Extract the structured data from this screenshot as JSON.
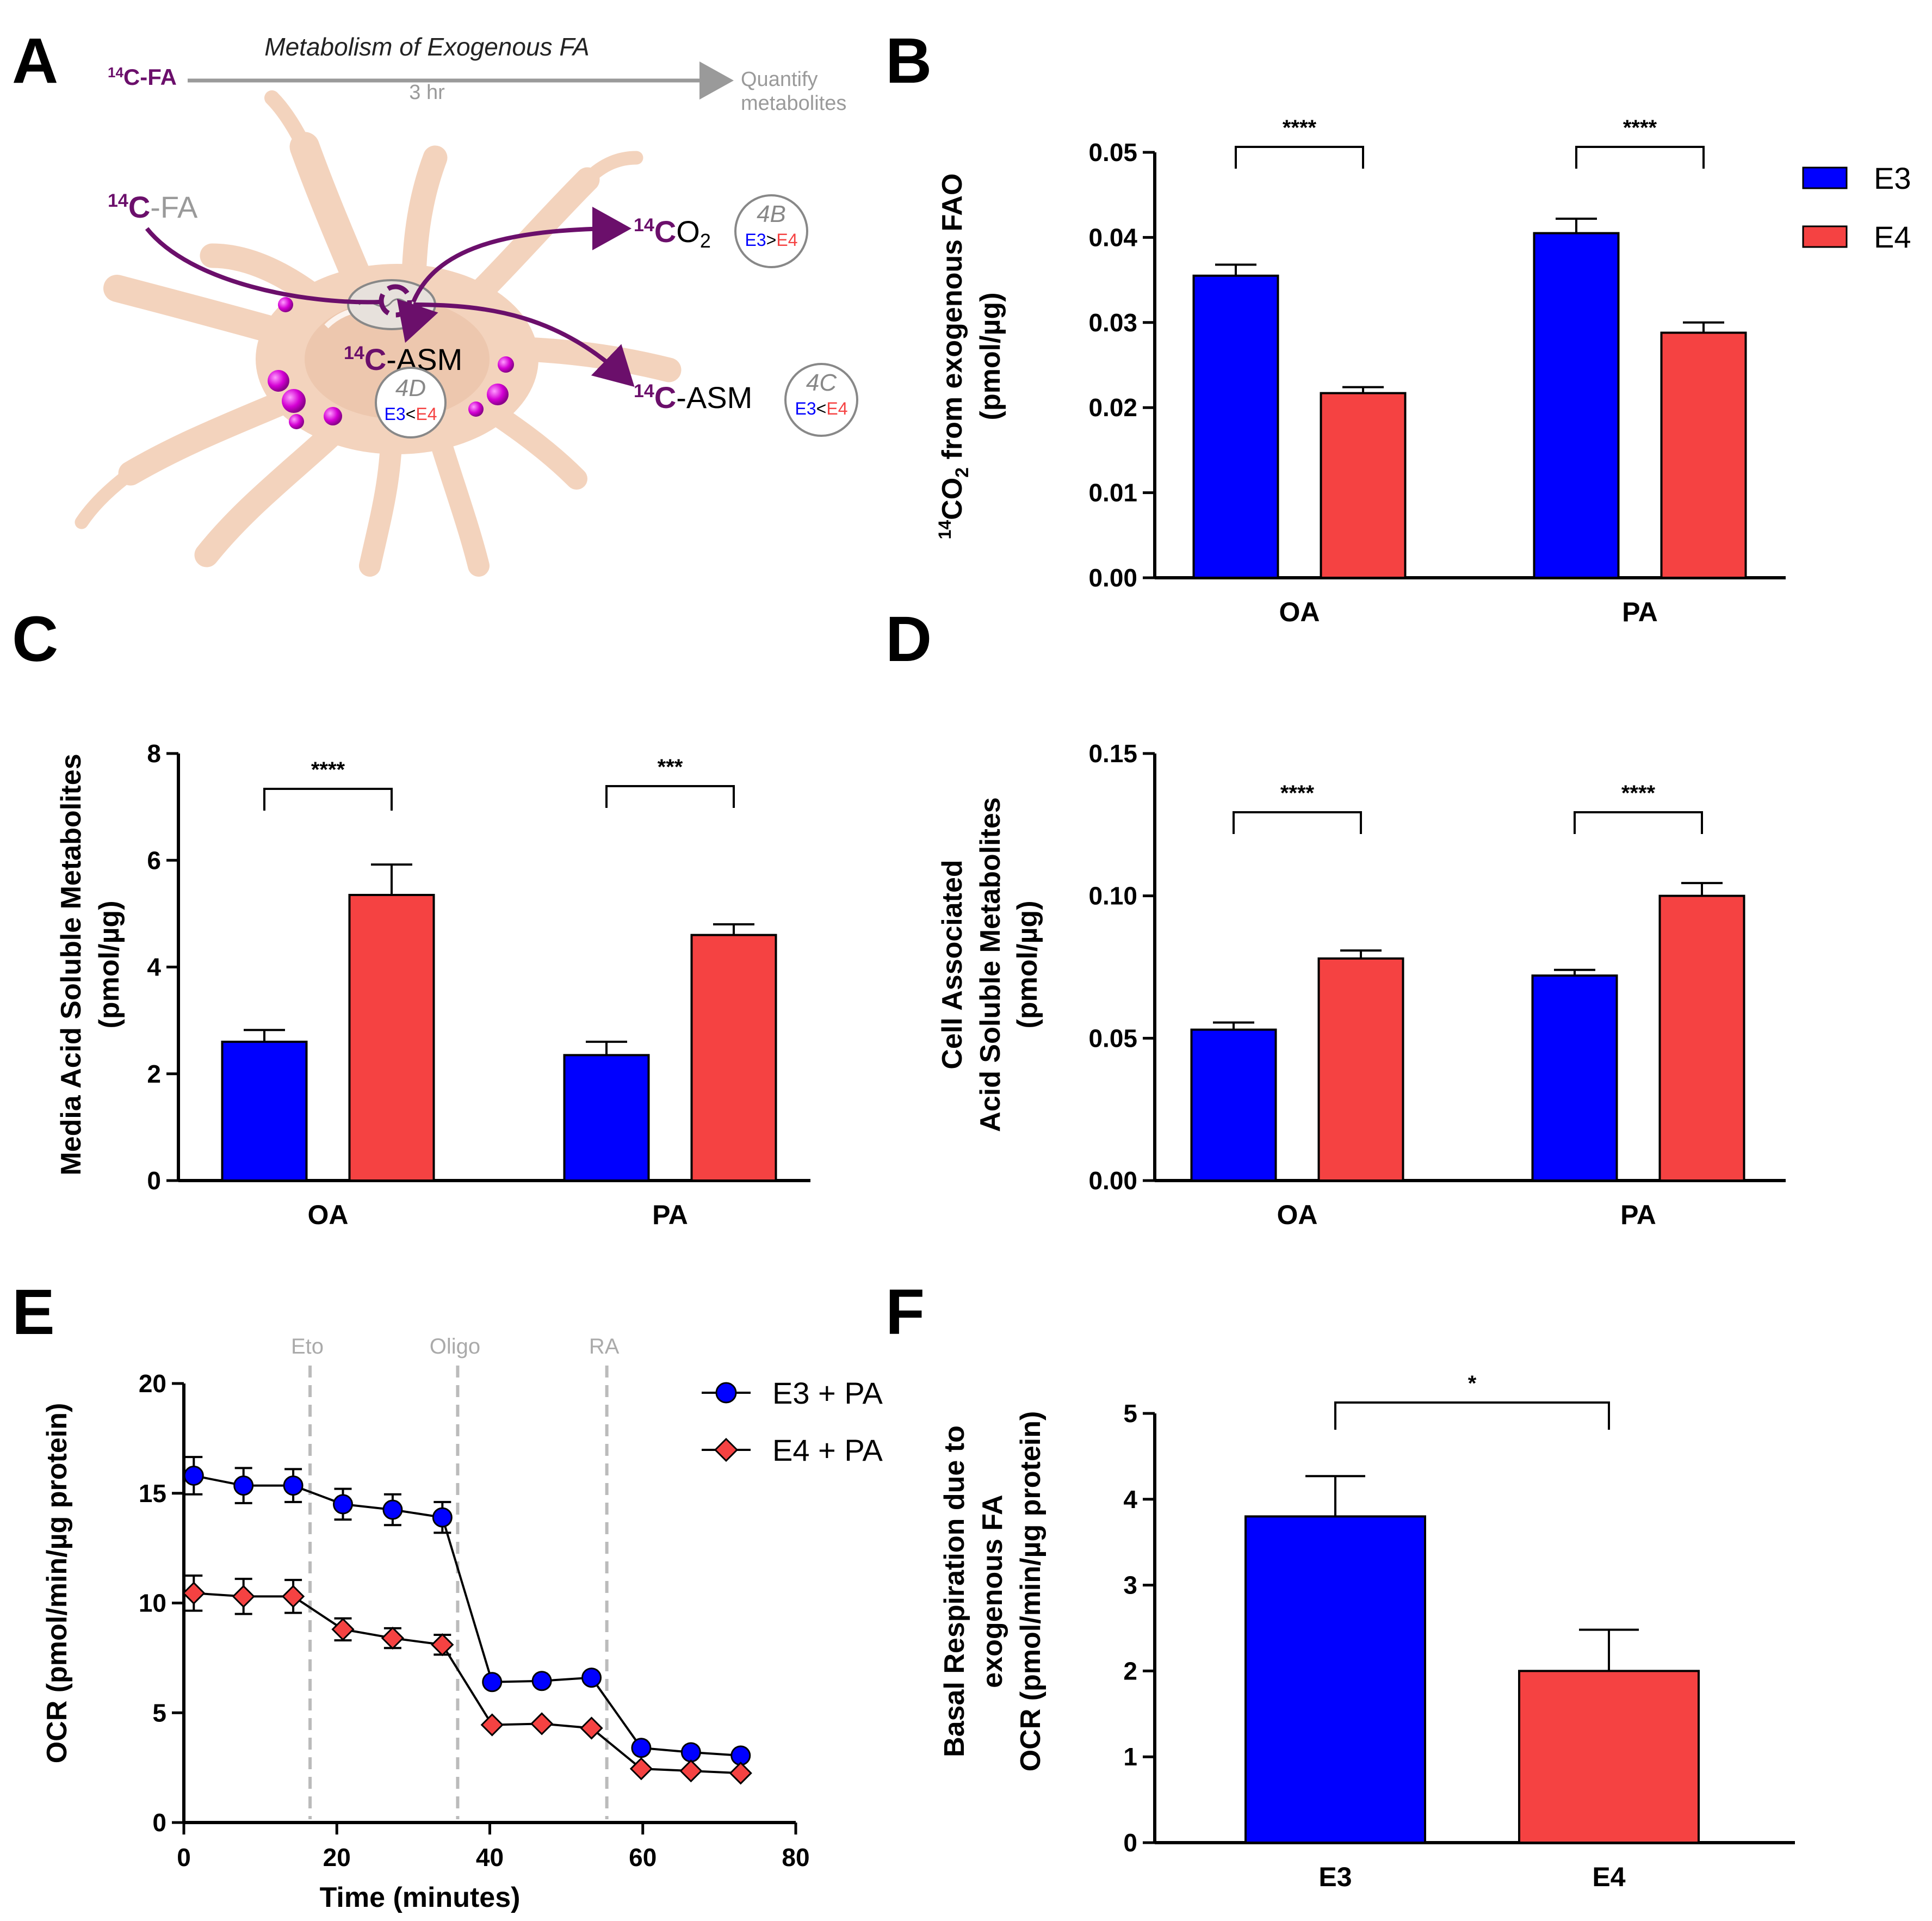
{
  "colors": {
    "e3": "#0000ff",
    "e4": "#f54242",
    "purple": "#6b0f6b",
    "gray": "#9a9a9a",
    "cell": "#f3d3bd"
  },
  "panel_labels": {
    "a": "A",
    "b": "B",
    "c": "C",
    "d": "D",
    "e": "E",
    "f": "F"
  },
  "schematic": {
    "title": "Metabolism of Exogenous FA",
    "timeline_start_iso": "14",
    "timeline_start_label": "C-FA",
    "timeline_duration": "3 hr",
    "timeline_end_line1": "Quantify",
    "timeline_end_line2": "metabolites",
    "fa_iso": "14",
    "fa_c": "C",
    "fa_rest": "-FA",
    "co2_iso": "14",
    "co2_c": "C",
    "co2_o": "O",
    "co2_sub": "2",
    "asm_in_iso": "14",
    "asm_in_c": "C",
    "asm_in_rest": "-ASM",
    "asm_out_iso": "14",
    "asm_out_c": "C",
    "asm_out_rest": "-ASM",
    "badge_4b": {
      "label": "4B",
      "e3": "E3",
      "op": ">",
      "e4": "E4"
    },
    "badge_4c": {
      "label": "4C",
      "e3": "E3",
      "op": "<",
      "e4": "E4"
    },
    "badge_4d": {
      "label": "4D",
      "e3": "E3",
      "op": "<",
      "e4": "E4"
    }
  },
  "legend_b": {
    "e3": "E3",
    "e4": "E4"
  },
  "legend_e": {
    "e3": "E3 + PA",
    "e4": "E4 + PA"
  },
  "chart_data": [
    {
      "id": "B",
      "type": "bar",
      "ylabel_iso": "14",
      "ylabel_main": "CO",
      "ylabel_sub": "2",
      "ylabel_rest": " from exogenous FAO",
      "ylabel_line2": "(pmol/µg)",
      "categories": [
        "OA",
        "PA"
      ],
      "series": [
        {
          "name": "E3",
          "values": [
            0.0355,
            0.0405
          ],
          "errors": [
            0.0013,
            0.0017
          ]
        },
        {
          "name": "E4",
          "values": [
            0.0217,
            0.0288
          ],
          "errors": [
            0.0007,
            0.0012
          ]
        }
      ],
      "yticks": [
        "0.00",
        "0.01",
        "0.02",
        "0.03",
        "0.04",
        "0.05"
      ],
      "ylim": [
        0,
        0.05
      ],
      "significance": [
        "****",
        "****"
      ]
    },
    {
      "id": "C",
      "type": "bar",
      "ylabel_line1": "Media Acid Soluble Metabolites",
      "ylabel_line2": "(pmol/µg)",
      "categories": [
        "OA",
        "PA"
      ],
      "series": [
        {
          "name": "E3",
          "values": [
            2.6,
            2.35
          ],
          "errors": [
            0.22,
            0.25
          ]
        },
        {
          "name": "E4",
          "values": [
            5.35,
            4.6
          ],
          "errors": [
            0.57,
            0.2
          ]
        }
      ],
      "yticks": [
        "0",
        "2",
        "4",
        "6",
        "8"
      ],
      "ylim": [
        0,
        8
      ],
      "significance": [
        "****",
        "***"
      ]
    },
    {
      "id": "D",
      "type": "bar",
      "ylabel_line1": "Cell Associated",
      "ylabel_line2": "Acid Soluble Metabolites",
      "ylabel_line3": "(pmol/µg)",
      "categories": [
        "OA",
        "PA"
      ],
      "series": [
        {
          "name": "E3",
          "values": [
            0.053,
            0.072
          ],
          "errors": [
            0.0025,
            0.002
          ]
        },
        {
          "name": "E4",
          "values": [
            0.078,
            0.1
          ],
          "errors": [
            0.0028,
            0.0045
          ]
        }
      ],
      "yticks": [
        "0.00",
        "0.05",
        "0.10",
        "0.15"
      ],
      "ylim": [
        0,
        0.15
      ],
      "significance": [
        "****",
        "****"
      ]
    },
    {
      "id": "E",
      "type": "line",
      "xlabel": "Time (minutes)",
      "ylabel": "OCR (pmol/min/µg protein)",
      "xticks": [
        "0",
        "20",
        "40",
        "60",
        "80"
      ],
      "yticks": [
        "0",
        "5",
        "10",
        "15",
        "20"
      ],
      "xlim": [
        0,
        80
      ],
      "ylim": [
        0,
        20
      ],
      "x": [
        1.3,
        7.8,
        14.3,
        20.8,
        27.3,
        33.8,
        40.3,
        46.8,
        53.3,
        59.8,
        66.3,
        72.8
      ],
      "series": [
        {
          "name": "E3 + PA",
          "marker": "circle",
          "values": [
            15.8,
            15.35,
            15.35,
            14.5,
            14.25,
            13.9,
            6.4,
            6.45,
            6.6,
            3.4,
            3.2,
            3.05
          ],
          "errors": [
            0.85,
            0.8,
            0.75,
            0.7,
            0.7,
            0.7,
            0,
            0,
            0,
            0,
            0,
            0
          ]
        },
        {
          "name": "E4 + PA",
          "marker": "diamond",
          "values": [
            10.45,
            10.3,
            10.3,
            8.8,
            8.4,
            8.1,
            4.45,
            4.5,
            4.3,
            2.45,
            2.35,
            2.25
          ],
          "errors": [
            0.8,
            0.8,
            0.75,
            0.5,
            0.45,
            0.45,
            0,
            0,
            0,
            0,
            0,
            0
          ]
        }
      ],
      "vlines": [
        {
          "x": 16.5,
          "label": "Eto"
        },
        {
          "x": 35.8,
          "label": "Oligo"
        },
        {
          "x": 55.3,
          "label": "RA"
        }
      ]
    },
    {
      "id": "F",
      "type": "bar",
      "ylabel_line1": "Basal Respiration due to",
      "ylabel_line2": "exogenous FA",
      "ylabel_line3": "OCR (pmol/min/µg protein)",
      "categories": [
        "E3",
        "E4"
      ],
      "values": [
        3.8,
        2.0
      ],
      "errors": [
        0.47,
        0.48
      ],
      "yticks": [
        "0",
        "1",
        "2",
        "3",
        "4",
        "5"
      ],
      "ylim": [
        0,
        5
      ],
      "significance": [
        "*"
      ]
    }
  ]
}
